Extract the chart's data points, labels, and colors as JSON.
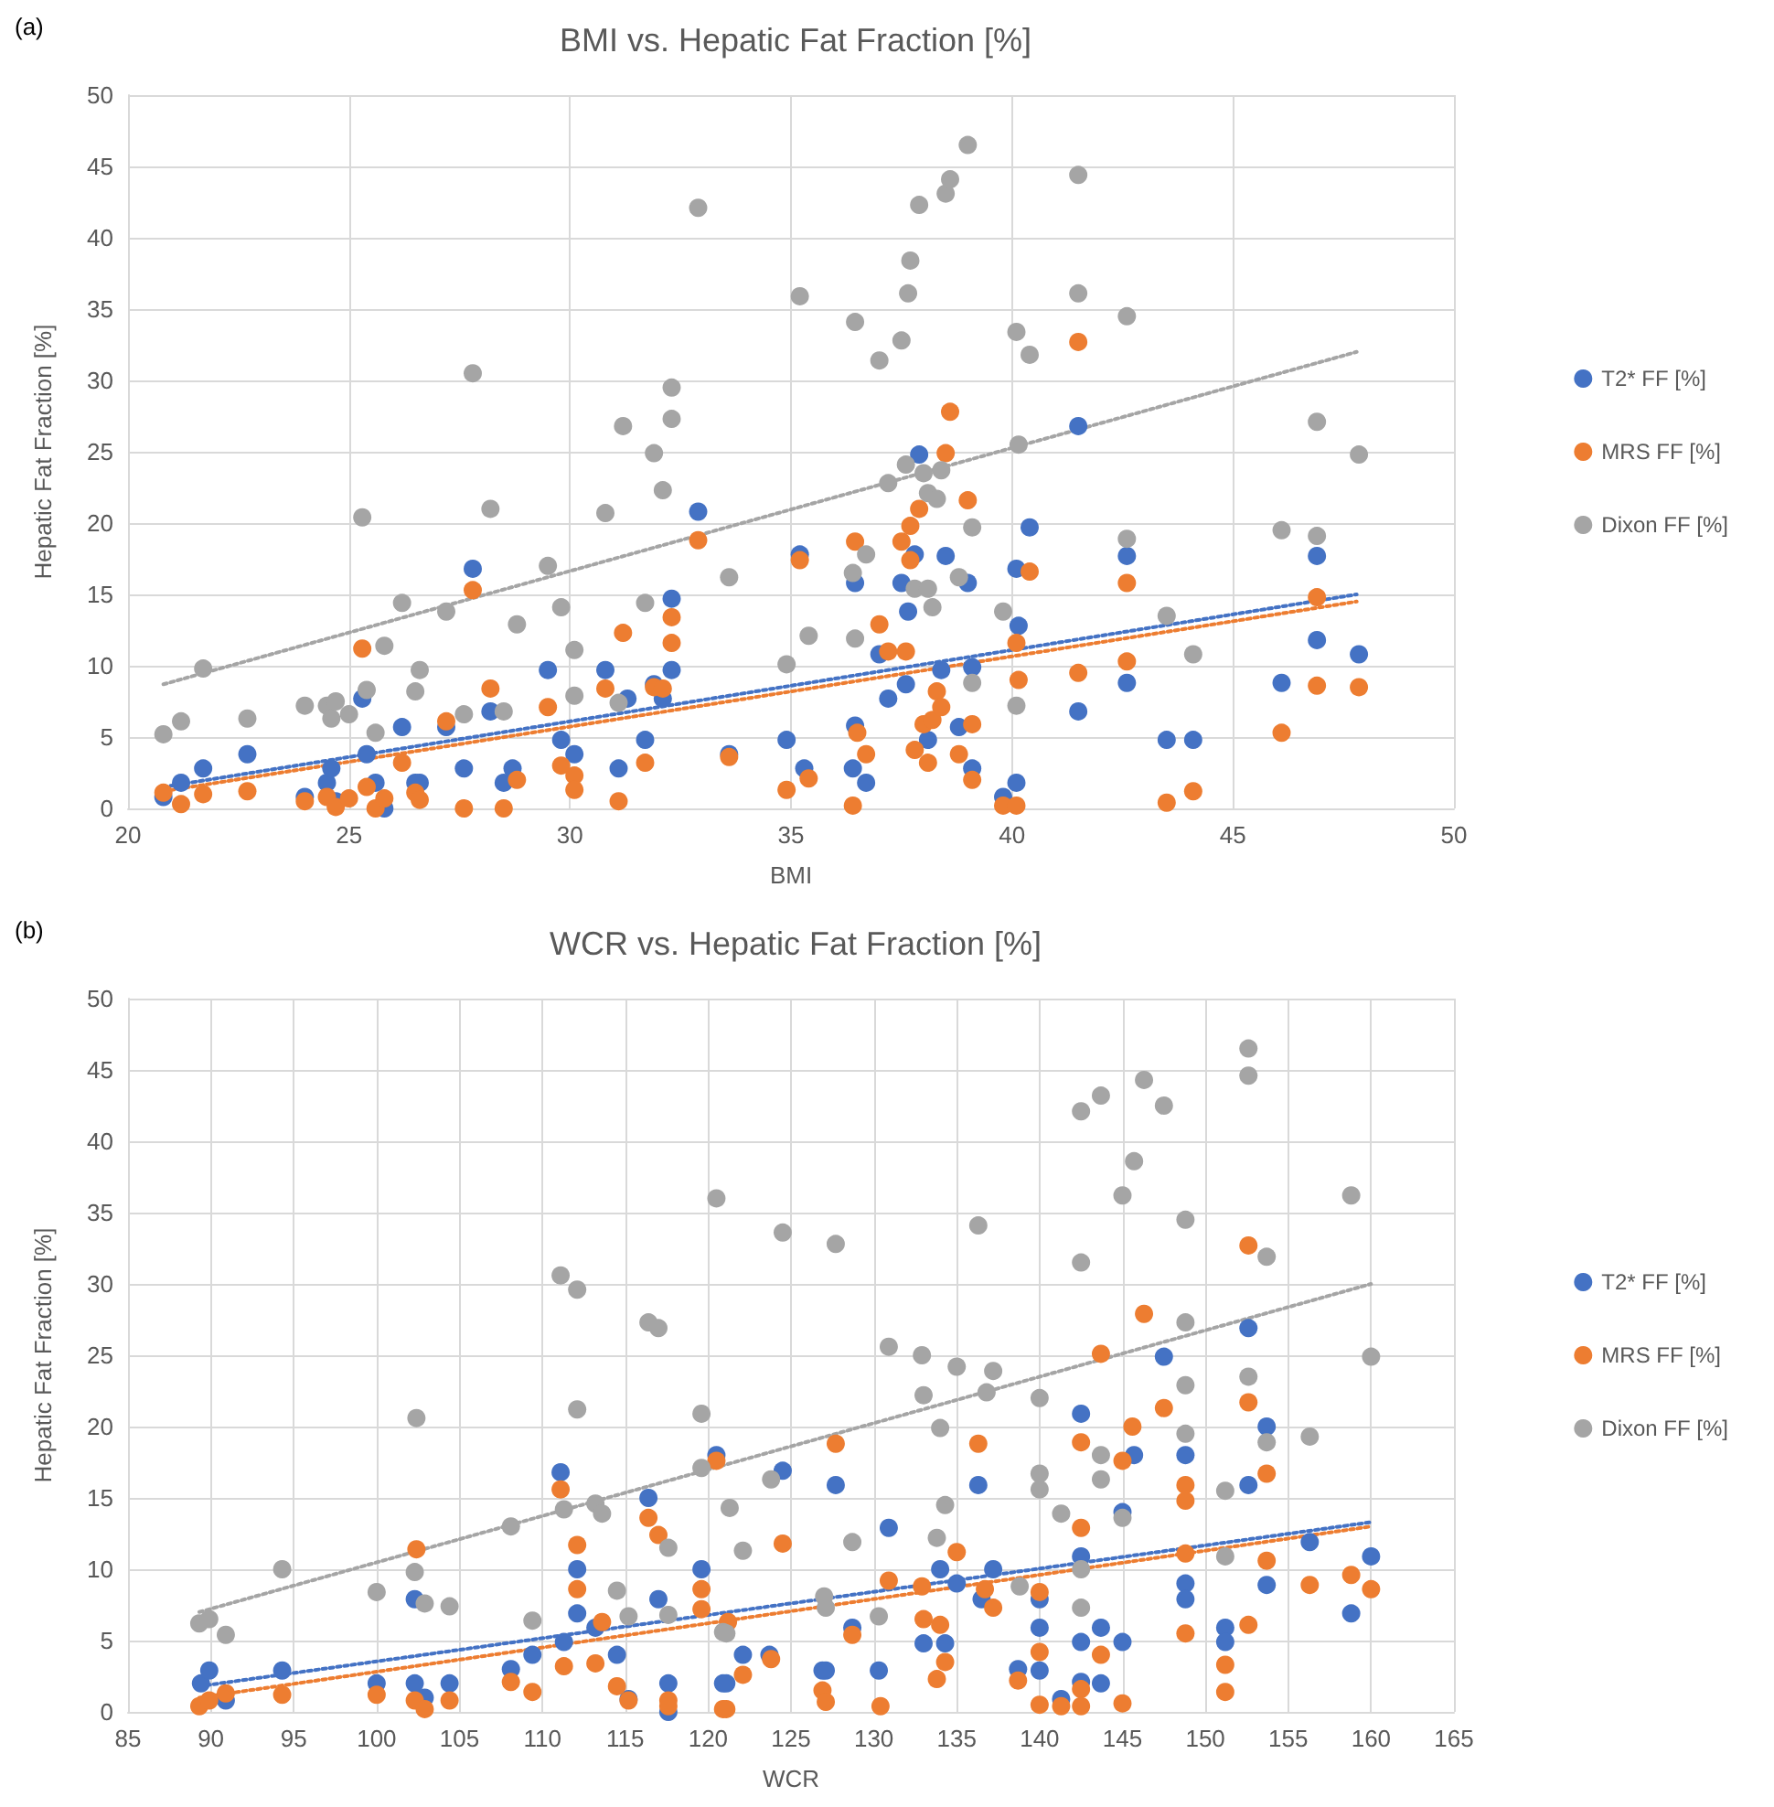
{
  "chart_data": [
    {
      "type": "scatter",
      "title": "BMI vs. Hepatic Fat Fraction [%]",
      "xlabel": "BMI",
      "ylabel": "Hepatic Fat Fraction [%]",
      "annotations": [
        "(a)"
      ],
      "xlim": [
        20,
        50
      ],
      "xticks": [
        20,
        25,
        30,
        35,
        40,
        45,
        50
      ],
      "ylim": [
        0,
        50
      ],
      "yticks": [
        0,
        5,
        10,
        15,
        20,
        25,
        30,
        35,
        40,
        45,
        50
      ],
      "grid": true,
      "legend": "right",
      "marker": "circle",
      "series": [
        {
          "name": "T2* FF [%]",
          "color": "#4472c4",
          "x": [
            20.8,
            21.2,
            21.7,
            22.7,
            24,
            24.5,
            24.6,
            24.7,
            25,
            25.3,
            25.4,
            25.6,
            25.8,
            26.2,
            26.5,
            26.6,
            27.2,
            27.6,
            27.8,
            28.2,
            28.5,
            28.7,
            29.5,
            29.8,
            30.1,
            30.8,
            31.1,
            31.3,
            31.7,
            31.9,
            32.1,
            32.3,
            32.3,
            32.9,
            33.6,
            34.9,
            35.2,
            35.3,
            36.4,
            36.45,
            36.45,
            36.7,
            37,
            37.2,
            37.5,
            37.6,
            37.65,
            37.8,
            37.9,
            38.1,
            38.4,
            38.5,
            38.8,
            39,
            39.1,
            39.1,
            39.8,
            40.1,
            40.1,
            40.15,
            40.4,
            41.5,
            41.5,
            42.6,
            42.6,
            43.5,
            44.1,
            46.1,
            46.9,
            46.9,
            47.85
          ],
          "values": [
            0.8,
            1.8,
            2.8,
            3.8,
            0.8,
            1.8,
            2.8,
            0.5,
            null,
            7.7,
            3.8,
            1.8,
            0,
            5.7,
            1.8,
            1.8,
            5.7,
            2.8,
            16.8,
            6.8,
            1.8,
            2.8,
            9.7,
            4.8,
            3.8,
            9.7,
            2.8,
            7.7,
            4.8,
            8.7,
            7.7,
            14.7,
            9.7,
            20.8,
            3.8,
            4.8,
            17.8,
            2.8,
            2.8,
            15.8,
            5.8,
            1.8,
            10.8,
            7.7,
            15.8,
            8.7,
            13.8,
            17.8,
            24.8,
            4.8,
            9.7,
            17.7,
            5.7,
            15.8,
            9.9,
            2.8,
            0.8,
            1.8,
            16.8,
            12.8,
            19.7,
            26.8,
            6.8,
            17.7,
            8.8,
            4.8,
            4.8,
            8.8,
            17.7,
            11.8,
            10.8
          ]
        },
        {
          "name": "MRS FF [%]",
          "color": "#ed7d31",
          "x": [
            20.8,
            21.2,
            21.7,
            22.7,
            24,
            24.5,
            24.7,
            25,
            25.3,
            25.4,
            25.6,
            25.8,
            26.2,
            26.5,
            26.6,
            27.2,
            27.6,
            27.8,
            28.2,
            28.5,
            28.8,
            29.5,
            29.8,
            30.1,
            30.1,
            30.8,
            31.1,
            31.2,
            31.7,
            31.9,
            32.1,
            32.3,
            32.3,
            32.9,
            33.6,
            34.9,
            35.2,
            35.4,
            36.4,
            36.45,
            36.5,
            36.7,
            37,
            37.2,
            37.5,
            37.6,
            37.7,
            37.7,
            37.8,
            37.9,
            38,
            38.1,
            38.2,
            38.3,
            38.4,
            38.5,
            38.6,
            38.8,
            39,
            39.1,
            39.1,
            39.8,
            40.1,
            40.1,
            40.15,
            40.4,
            41.5,
            41.5,
            42.6,
            42.6,
            43.5,
            44.1,
            46.1,
            46.9,
            46.9,
            47.85
          ],
          "values": [
            1.1,
            0.3,
            1,
            1.2,
            0.5,
            0.8,
            0.1,
            0.7,
            11.2,
            1.5,
            0,
            0.7,
            3.2,
            1.1,
            0.6,
            6.1,
            0,
            15.3,
            8.4,
            0,
            2,
            7.1,
            3,
            2.3,
            1.3,
            8.4,
            0.5,
            12.3,
            3.2,
            8.5,
            8.4,
            13.4,
            11.6,
            18.8,
            3.6,
            1.3,
            17.4,
            2.1,
            0.2,
            18.7,
            5.3,
            3.8,
            12.9,
            11,
            18.7,
            11,
            17.4,
            19.8,
            4.1,
            21,
            5.9,
            3.2,
            6.2,
            8.2,
            7.1,
            24.9,
            27.8,
            3.8,
            21.6,
            5.9,
            2,
            0.2,
            0.2,
            11.6,
            9,
            16.6,
            32.7,
            9.5,
            15.8,
            10.3,
            0.4,
            1.2,
            5.3,
            14.8,
            8.6,
            8.5
          ]
        },
        {
          "name": "Dixon FF [%]",
          "color": "#a5a5a5",
          "x": [
            20.8,
            21.2,
            21.7,
            22.7,
            24,
            24.5,
            24.6,
            24.7,
            25,
            25.3,
            25.4,
            25.6,
            25.8,
            26.2,
            26.5,
            26.6,
            27.2,
            27.6,
            27.8,
            28.2,
            28.5,
            28.8,
            29.5,
            29.8,
            30.1,
            30.1,
            30.8,
            31.1,
            31.2,
            31.7,
            31.9,
            32.1,
            32.3,
            32.3,
            32.9,
            33.6,
            34.9,
            35.2,
            35.4,
            36.4,
            36.45,
            36.45,
            36.7,
            37,
            37.2,
            37.5,
            37.6,
            37.65,
            37.7,
            37.8,
            37.9,
            38,
            38.1,
            38.1,
            38.2,
            38.3,
            38.4,
            38.5,
            38.6,
            38.8,
            39,
            39.1,
            39.1,
            39.8,
            40.1,
            40.1,
            40.15,
            40.4,
            41.5,
            41.5,
            42.6,
            42.6,
            43.5,
            44.1,
            46.1,
            46.9,
            46.9,
            47.85
          ],
          "values": [
            5.2,
            6.1,
            9.8,
            6.3,
            7.2,
            7.2,
            6.3,
            7.5,
            6.6,
            20.4,
            8.3,
            5.3,
            11.4,
            14.4,
            8.2,
            9.7,
            13.8,
            6.6,
            30.5,
            21,
            6.8,
            12.9,
            17,
            14.1,
            11.1,
            7.9,
            20.7,
            7.4,
            26.8,
            14.4,
            24.9,
            22.3,
            27.3,
            29.5,
            42.1,
            16.2,
            10.1,
            35.9,
            12.1,
            16.5,
            34.1,
            11.9,
            17.8,
            31.4,
            22.8,
            32.8,
            24.1,
            36.1,
            38.4,
            15.4,
            42.3,
            23.5,
            22.1,
            15.4,
            14.1,
            21.7,
            23.7,
            43.1,
            44.1,
            16.2,
            46.5,
            19.7,
            8.8,
            13.8,
            33.4,
            7.2,
            25.5,
            31.8,
            44.4,
            36.1,
            34.5,
            18.9,
            13.5,
            10.8,
            19.5,
            27.1,
            19.1,
            24.8
          ]
        },
        {
          "type": "line",
          "color": "#4472c4",
          "x": [
            20.8,
            47.8
          ],
          "values": [
            1.5,
            15
          ],
          "line_style": "dotted",
          "marker": "none"
        },
        {
          "type": "line",
          "color": "#ed7d31",
          "x": [
            20.8,
            47.8
          ],
          "values": [
            1.2,
            14.5
          ],
          "line_style": "dotted",
          "marker": "none"
        },
        {
          "type": "line",
          "color": "#a5a5a5",
          "x": [
            20.8,
            47.8
          ],
          "values": [
            8.7,
            32
          ],
          "line_style": "dotted",
          "marker": "none"
        }
      ]
    },
    {
      "type": "scatter",
      "title": "WCR vs. Hepatic Fat Fraction [%]",
      "xlabel": "WCR",
      "ylabel": "Hepatic Fat Fraction [%]",
      "annotations": [
        "(b)"
      ],
      "xlim": [
        85,
        165
      ],
      "xticks": [
        85,
        90,
        95,
        100,
        105,
        110,
        115,
        120,
        125,
        130,
        135,
        140,
        145,
        150,
        155,
        160,
        165
      ],
      "ylim": [
        0,
        50
      ],
      "yticks": [
        0,
        5,
        10,
        15,
        20,
        25,
        30,
        35,
        40,
        45,
        50
      ],
      "grid": true,
      "legend": "right",
      "marker": "circle",
      "series": [
        {
          "name": "T2* FF [%]",
          "color": "#4472c4",
          "x": [
            89.4,
            89.9,
            90.9,
            94.3,
            100,
            102.3,
            102.3,
            102.9,
            104.4,
            108.1,
            109.4,
            111.1,
            111.3,
            112.1,
            112.1,
            113.2,
            114.5,
            115.2,
            116.4,
            117,
            117.6,
            117.6,
            119.6,
            120.5,
            120.9,
            121.1,
            122.1,
            123.7,
            124.5,
            126.9,
            127.1,
            127.7,
            128.7,
            130.3,
            130.9,
            133,
            134,
            134.3,
            135,
            136.3,
            136.5,
            137.2,
            138.7,
            140,
            140,
            140,
            141.3,
            142.5,
            142.5,
            142.5,
            142.5,
            143.7,
            143.7,
            145,
            145,
            145.7,
            147.5,
            148.8,
            148.8,
            148.8,
            151.2,
            151.2,
            152.6,
            152.6,
            153.7,
            153.7,
            156.3,
            158.8,
            160
          ],
          "values": [
            2,
            2.9,
            0.8,
            2.9,
            2,
            2,
            7.9,
            1,
            2,
            3,
            4,
            16.8,
            4.9,
            10,
            6.9,
            5.9,
            4,
            0.9,
            15,
            7.9,
            2,
            0,
            10,
            18,
            2,
            2,
            4,
            4,
            16.9,
            2.9,
            2.9,
            15.9,
            5.9,
            2.9,
            12.9,
            4.8,
            10,
            4.8,
            9,
            15.9,
            7.9,
            10,
            3,
            2.9,
            5.9,
            7.9,
            0.9,
            20.9,
            10.9,
            4.9,
            2.1,
            5.9,
            2,
            4.9,
            14,
            18,
            24.9,
            18,
            9,
            7.9,
            5.9,
            4.9,
            26.9,
            15.9,
            20,
            8.9,
            11.9,
            6.9,
            10.9
          ]
        },
        {
          "name": "MRS FF [%]",
          "color": "#ed7d31",
          "x": [
            89.3,
            89.9,
            90.9,
            94.3,
            100,
            102.4,
            102.3,
            102.9,
            104.4,
            108.1,
            109.4,
            111.1,
            111.3,
            112.1,
            112.1,
            113.6,
            113.2,
            114.5,
            115.2,
            116.4,
            117,
            117.6,
            117.6,
            119.6,
            119.6,
            120.5,
            120.9,
            121.1,
            121.2,
            122.1,
            123.8,
            124.5,
            126.9,
            127.1,
            127.7,
            128.7,
            130.4,
            130.9,
            132.9,
            133,
            133.8,
            134,
            134.3,
            135,
            136.3,
            136.7,
            137.2,
            138.7,
            140,
            140,
            140,
            141.3,
            142.5,
            142.5,
            142.5,
            142.5,
            143.7,
            143.7,
            145,
            145,
            145.6,
            146.3,
            147.5,
            148.8,
            148.8,
            148.8,
            148.8,
            151.2,
            151.2,
            152.6,
            152.6,
            152.6,
            153.7,
            153.7,
            156.3,
            158.8,
            160
          ],
          "values": [
            0.4,
            0.8,
            1.3,
            1.2,
            1.2,
            11.4,
            0.8,
            0.2,
            0.8,
            2.1,
            1.4,
            15.6,
            3.2,
            11.7,
            8.6,
            6.3,
            3.4,
            1.8,
            0.8,
            13.6,
            12.4,
            0.8,
            0.4,
            8.6,
            7.2,
            17.6,
            0.2,
            0.2,
            6.3,
            2.6,
            3.7,
            11.8,
            1.5,
            0.7,
            18.8,
            5.4,
            0.4,
            9.2,
            8.8,
            6.5,
            2.3,
            6.1,
            3.5,
            11.2,
            18.8,
            8.6,
            7.3,
            2.2,
            8.4,
            4.2,
            0.5,
            0.4,
            18.9,
            12.9,
            1.6,
            0.4,
            25.1,
            4,
            17.6,
            0.6,
            20,
            27.9,
            21.3,
            15.9,
            14.8,
            11.1,
            5.5,
            3.3,
            1.4,
            32.7,
            21.7,
            6.1,
            16.7,
            10.6,
            8.9,
            9.6,
            8.6
          ]
        },
        {
          "name": "Dixon FF [%]",
          "color": "#a5a5a5",
          "x": [
            89.3,
            89.9,
            90.9,
            94.3,
            100,
            102.4,
            102.3,
            102.9,
            104.4,
            108.1,
            109.4,
            111.1,
            111.3,
            112.1,
            112.1,
            113.2,
            113.6,
            114.5,
            115.2,
            116.4,
            117,
            117.6,
            117.6,
            119.6,
            119.6,
            120.5,
            120.9,
            121.1,
            121.3,
            122.1,
            123.8,
            124.5,
            127,
            127.1,
            127.7,
            128.7,
            130.3,
            130.9,
            132.9,
            133,
            133.8,
            134,
            134.3,
            135,
            136.3,
            136.8,
            137.2,
            138.8,
            140,
            140,
            140,
            141.3,
            142.5,
            142.5,
            142.5,
            142.5,
            143.7,
            143.7,
            143.7,
            145,
            145,
            145.7,
            146.3,
            147.5,
            148.8,
            148.8,
            148.8,
            148.8,
            151.2,
            151.2,
            152.6,
            152.6,
            152.6,
            153.7,
            153.7,
            156.3,
            158.8,
            160
          ],
          "values": [
            6.2,
            6.5,
            5.4,
            10,
            8.4,
            20.6,
            9.8,
            7.6,
            7.4,
            13,
            6.4,
            30.6,
            14.2,
            29.6,
            21.2,
            14.6,
            13.9,
            8.5,
            6.7,
            27.3,
            26.9,
            11.5,
            6.8,
            20.9,
            17.1,
            36,
            5.6,
            5.5,
            14.3,
            11.3,
            16.3,
            33.6,
            8.1,
            7.3,
            32.8,
            11.9,
            6.7,
            25.6,
            25,
            22.2,
            12.2,
            19.9,
            14.5,
            24.2,
            34.1,
            22.4,
            23.9,
            8.8,
            22,
            16.7,
            15.6,
            13.9,
            42.1,
            31.5,
            10,
            7.3,
            43.2,
            18,
            16.3,
            36.2,
            13.6,
            38.6,
            44.3,
            42.5,
            34.5,
            27.3,
            22.9,
            19.5,
            15.5,
            10.9,
            46.5,
            44.6,
            23.5,
            31.9,
            18.9,
            19.3,
            36.2,
            24.9
          ]
        },
        {
          "type": "line",
          "color": "#4472c4",
          "x": [
            89.3,
            160
          ],
          "values": [
            1.8,
            13.3
          ],
          "line_style": "dotted",
          "marker": "none"
        },
        {
          "type": "line",
          "color": "#ed7d31",
          "x": [
            89.3,
            160
          ],
          "values": [
            1,
            13
          ],
          "line_style": "dotted",
          "marker": "none"
        },
        {
          "type": "line",
          "color": "#a5a5a5",
          "x": [
            89.3,
            160
          ],
          "values": [
            7,
            30
          ],
          "line_style": "dotted",
          "marker": "none"
        }
      ]
    }
  ]
}
